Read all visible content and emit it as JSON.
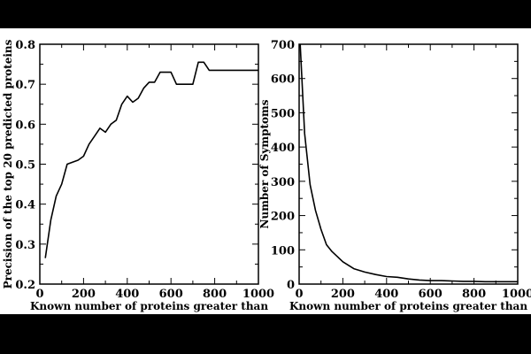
{
  "chart_data": [
    {
      "type": "line",
      "xlabel": "Known number of  proteins greater than",
      "ylabel": "Precision of the top 20 predicted proteins",
      "xlim": [
        0,
        1000
      ],
      "ylim": [
        0.2,
        0.8
      ],
      "xticks": [
        0,
        200,
        400,
        600,
        800,
        1000
      ],
      "yticks": [
        0.2,
        0.3,
        0.4,
        0.5,
        0.6,
        0.7,
        0.8
      ],
      "ytick_labels": [
        "0.2",
        "0.3",
        "0.4",
        "0.5",
        "0.6",
        "0.7",
        "0.8"
      ],
      "series": [
        {
          "x": [
            25,
            50,
            75,
            100,
            125,
            150,
            175,
            200,
            225,
            250,
            275,
            300,
            325,
            350,
            375,
            400,
            425,
            450,
            475,
            500,
            525,
            550,
            575,
            600,
            625,
            650,
            675,
            700,
            725,
            750,
            775,
            800,
            825,
            850,
            875,
            900,
            925,
            950,
            975,
            1000
          ],
          "y": [
            0.265,
            0.36,
            0.42,
            0.45,
            0.5,
            0.505,
            0.51,
            0.52,
            0.55,
            0.57,
            0.59,
            0.58,
            0.6,
            0.61,
            0.65,
            0.67,
            0.655,
            0.665,
            0.69,
            0.705,
            0.705,
            0.73,
            0.73,
            0.73,
            0.7,
            0.7,
            0.7,
            0.7,
            0.755,
            0.755,
            0.735,
            0.735,
            0.735,
            0.735,
            0.735,
            0.735,
            0.735,
            0.735,
            0.735,
            0.735
          ]
        }
      ]
    },
    {
      "type": "line",
      "xlabel": "Known number of proteins greater than",
      "ylabel": "Number of Symptoms",
      "xlim": [
        0,
        1000
      ],
      "ylim": [
        0,
        700
      ],
      "xticks": [
        0,
        200,
        400,
        600,
        800,
        1000
      ],
      "yticks": [
        0,
        100,
        200,
        300,
        400,
        500,
        600,
        700
      ],
      "ytick_labels": [
        "0",
        "100",
        "200",
        "300",
        "400",
        "500",
        "600",
        "700"
      ],
      "series": [
        {
          "x": [
            5,
            25,
            50,
            75,
            100,
            125,
            150,
            200,
            250,
            300,
            350,
            400,
            450,
            500,
            550,
            600,
            650,
            700,
            750,
            800,
            850,
            900,
            950,
            1000
          ],
          "y": [
            700,
            440,
            290,
            215,
            160,
            115,
            95,
            65,
            45,
            35,
            28,
            22,
            20,
            15,
            12,
            10,
            10,
            9,
            8,
            8,
            7,
            7,
            7,
            7
          ]
        }
      ]
    }
  ]
}
